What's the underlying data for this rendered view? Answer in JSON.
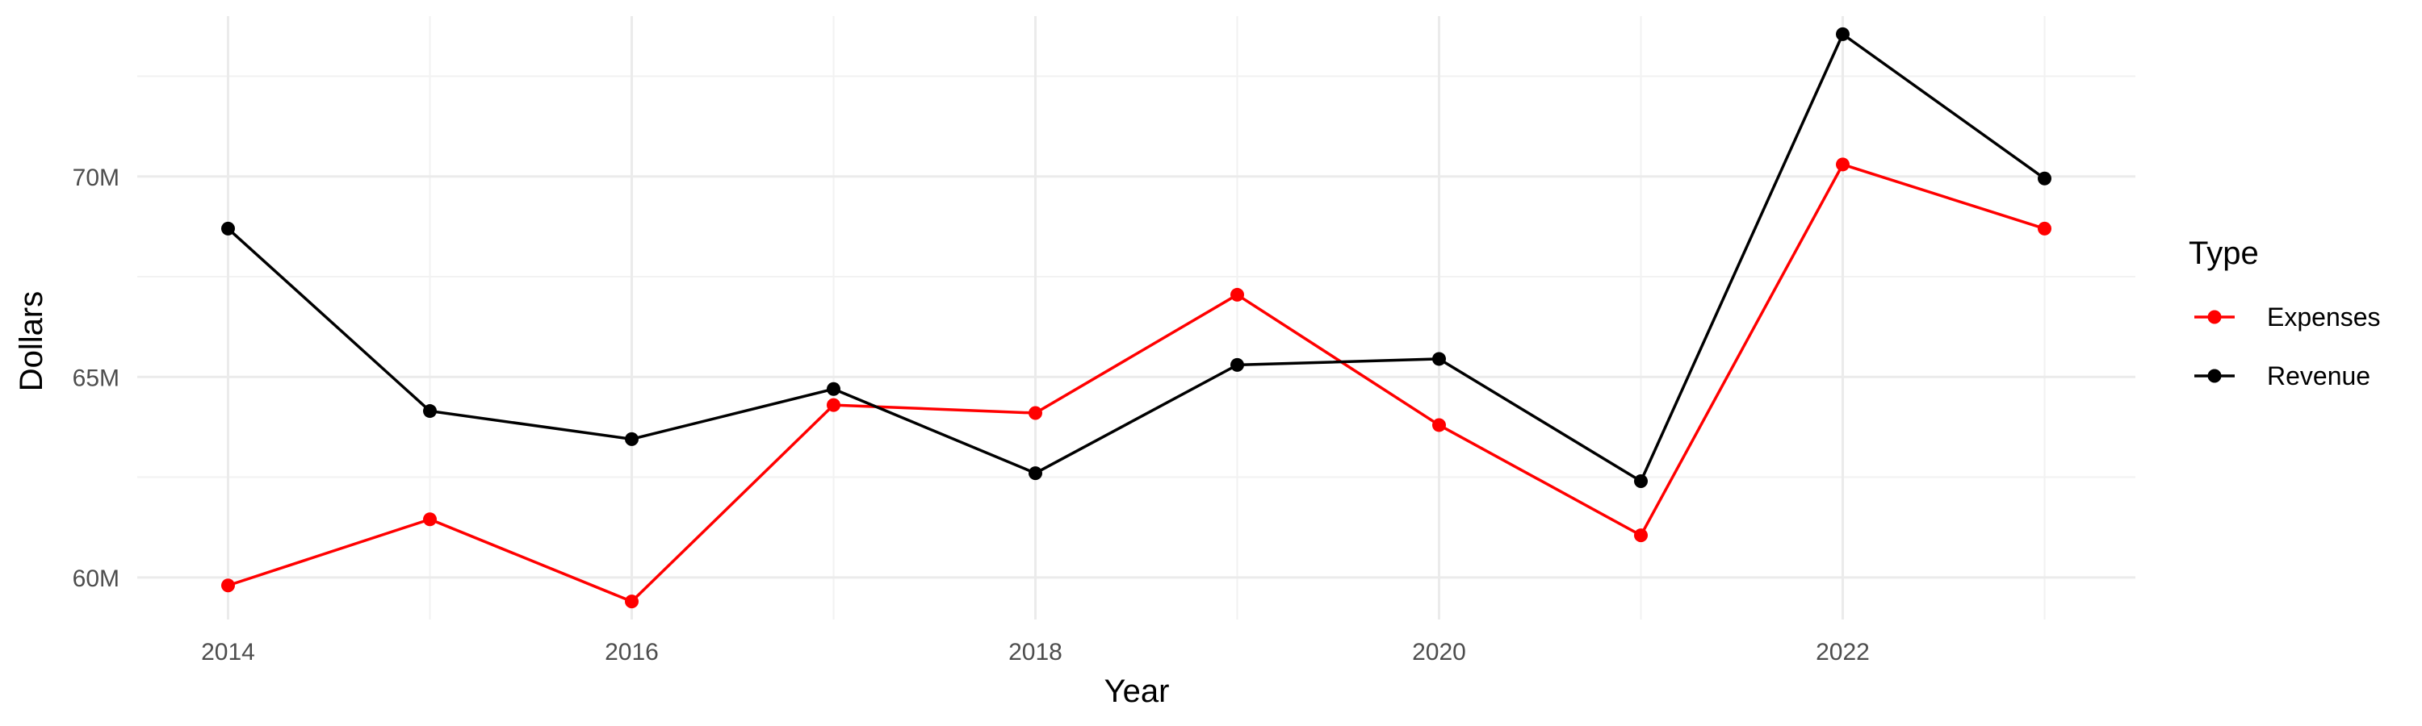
{
  "chart_data": {
    "type": "line",
    "title": "",
    "xlabel": "Year",
    "ylabel": "Dollars",
    "x": [
      2014,
      2015,
      2016,
      2017,
      2018,
      2019,
      2020,
      2021,
      2022,
      2023
    ],
    "x_ticks": [
      2014,
      2016,
      2018,
      2020,
      2022
    ],
    "x_tick_labels": [
      "2014",
      "2016",
      "2018",
      "2020",
      "2022"
    ],
    "y_ticks": [
      60000000,
      65000000,
      70000000
    ],
    "y_tick_labels": [
      "60M",
      "65M",
      "70M"
    ],
    "xlim": [
      2013.55,
      2023.45
    ],
    "ylim": [
      58950000,
      74000000
    ],
    "grid": true,
    "legend_title": "Type",
    "legend_position": "right",
    "series": [
      {
        "name": "Expenses",
        "color": "#ff0000",
        "values": [
          59800000,
          61450000,
          59400000,
          64300000,
          64100000,
          67050000,
          63800000,
          61050000,
          70300000,
          68700000
        ]
      },
      {
        "name": "Revenue",
        "color": "#000000",
        "values": [
          68700000,
          64150000,
          63450000,
          64700000,
          62600000,
          65300000,
          65450000,
          62400000,
          73550000,
          69950000
        ]
      }
    ]
  }
}
